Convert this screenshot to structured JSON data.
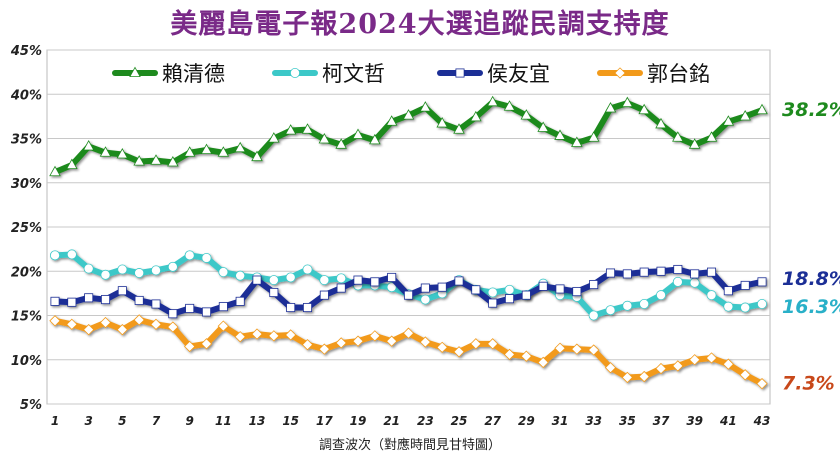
{
  "chart_data": {
    "type": "line",
    "title": "美麗島電子報2024大選追蹤民調支持度",
    "xlabel": "調查波次（對應時間見甘特圖）",
    "ylabel": "",
    "ylim": [
      5,
      45
    ],
    "yticks": [
      "5%",
      "10%",
      "15%",
      "20%",
      "25%",
      "30%",
      "35%",
      "40%",
      "45%"
    ],
    "xticks": [
      1,
      3,
      5,
      7,
      9,
      11,
      13,
      15,
      17,
      19,
      21,
      23,
      25,
      27,
      29,
      31,
      33,
      35,
      37,
      39,
      41,
      43
    ],
    "x": [
      1,
      2,
      3,
      4,
      5,
      6,
      7,
      8,
      9,
      10,
      11,
      12,
      13,
      14,
      15,
      16,
      17,
      18,
      19,
      20,
      21,
      22,
      23,
      24,
      25,
      26,
      27,
      28,
      29,
      30,
      31,
      32,
      33,
      34,
      35,
      36,
      37,
      38,
      39,
      40,
      41,
      42,
      43
    ],
    "grid": true,
    "legend_position": "top",
    "series": [
      {
        "name": "賴清德",
        "color": "#1e8a1e",
        "marker": "triangle",
        "end_label": "38.2%",
        "values": [
          31.2,
          32.0,
          34.1,
          33.4,
          33.2,
          32.4,
          32.5,
          32.3,
          33.4,
          33.7,
          33.4,
          33.9,
          32.9,
          35.0,
          35.9,
          36.0,
          34.9,
          34.3,
          35.4,
          34.8,
          36.9,
          37.6,
          38.5,
          36.7,
          36.0,
          37.4,
          39.1,
          38.6,
          37.6,
          36.2,
          35.3,
          34.5,
          35.1,
          38.4,
          39.0,
          38.2,
          36.6,
          35.1,
          34.3,
          35.1,
          36.9,
          37.5,
          38.2
        ]
      },
      {
        "name": "柯文哲",
        "color": "#3cc8c8",
        "marker": "circle",
        "end_label": "16.3%",
        "values": [
          21.8,
          21.9,
          20.3,
          19.6,
          20.2,
          19.8,
          20.1,
          20.5,
          21.8,
          21.5,
          19.9,
          19.5,
          19.3,
          19.0,
          19.3,
          20.2,
          19.0,
          19.2,
          18.4,
          18.4,
          18.2,
          17.4,
          16.8,
          17.5,
          19.0,
          17.9,
          17.6,
          17.9,
          17.3,
          18.6,
          17.3,
          17.1,
          15.0,
          15.6,
          16.1,
          16.3,
          17.3,
          18.8,
          18.7,
          17.3,
          16.0,
          15.9,
          16.3
        ]
      },
      {
        "name": "侯友宜",
        "color": "#1c2f96",
        "marker": "square",
        "end_label": "18.8%",
        "values": [
          16.6,
          16.5,
          17.0,
          16.8,
          17.8,
          16.7,
          16.3,
          15.2,
          15.8,
          15.4,
          16.0,
          16.6,
          19.0,
          17.6,
          15.9,
          15.9,
          17.3,
          18.1,
          19.0,
          18.8,
          19.3,
          17.3,
          18.1,
          18.2,
          18.9,
          17.9,
          16.4,
          16.9,
          17.3,
          18.3,
          18.0,
          17.7,
          18.5,
          19.8,
          19.7,
          19.9,
          20.0,
          20.2,
          19.7,
          19.9,
          17.8,
          18.4,
          18.8
        ]
      },
      {
        "name": "郭台銘",
        "color": "#f29a1a",
        "marker": "diamond",
        "end_label": "7.3%",
        "values": [
          14.4,
          14.0,
          13.4,
          14.2,
          13.4,
          14.5,
          14.0,
          13.7,
          11.5,
          11.8,
          13.8,
          12.6,
          12.9,
          12.7,
          12.8,
          11.7,
          11.2,
          11.9,
          12.1,
          12.7,
          12.1,
          13.0,
          12.0,
          11.4,
          10.9,
          11.8,
          11.8,
          10.6,
          10.4,
          9.7,
          11.3,
          11.2,
          11.1,
          9.1,
          8.0,
          8.1,
          9.0,
          9.3,
          10.0,
          10.2,
          9.5,
          8.3,
          7.3
        ]
      }
    ]
  }
}
